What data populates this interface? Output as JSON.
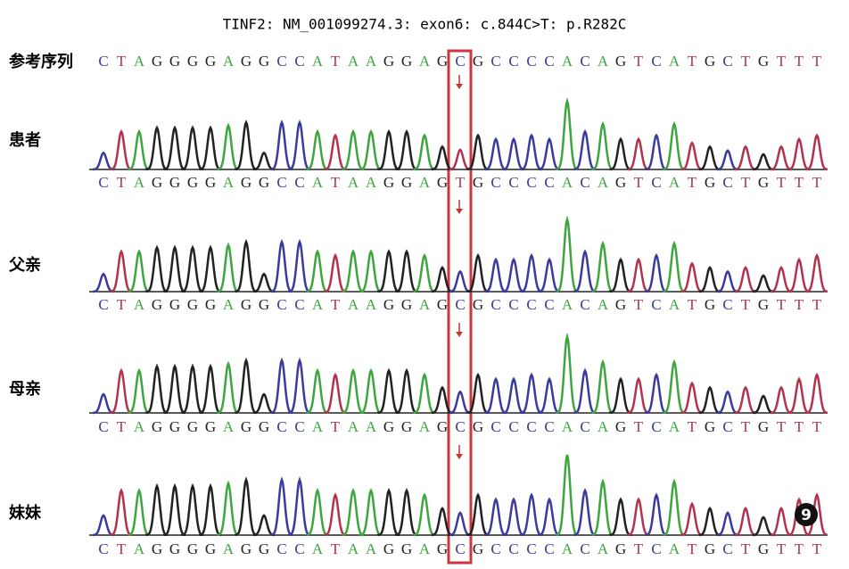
{
  "title": "TINF2: NM_001099274.3: exon6: c.844C>T: p.R282C",
  "reference": {
    "label": "参考序列",
    "sequence": [
      "C",
      "T",
      "A",
      "G",
      "G",
      "G",
      "G",
      "A",
      "G",
      "G",
      "C",
      "C",
      "A",
      "T",
      "A",
      "A",
      "G",
      "G",
      "A",
      "G",
      "C",
      "G",
      "C",
      "C",
      "C",
      "C",
      "A",
      "C",
      "A",
      "G",
      "T",
      "C",
      "A",
      "T",
      "G",
      "C",
      "T",
      "G",
      "T",
      "T",
      "T"
    ]
  },
  "rows": [
    {
      "label": "患者",
      "sequence": [
        "C",
        "T",
        "A",
        "G",
        "G",
        "G",
        "G",
        "A",
        "G",
        "G",
        "C",
        "C",
        "A",
        "T",
        "A",
        "A",
        "G",
        "G",
        "A",
        "G",
        "T",
        "G",
        "C",
        "C",
        "C",
        "C",
        "A",
        "C",
        "A",
        "G",
        "T",
        "C",
        "A",
        "T",
        "G",
        "C",
        "T",
        "G",
        "T",
        "T",
        "T"
      ]
    },
    {
      "label": "父亲",
      "sequence": [
        "C",
        "T",
        "A",
        "G",
        "G",
        "G",
        "G",
        "A",
        "G",
        "G",
        "C",
        "C",
        "A",
        "T",
        "A",
        "A",
        "G",
        "G",
        "A",
        "G",
        "C",
        "G",
        "C",
        "C",
        "C",
        "C",
        "A",
        "C",
        "A",
        "G",
        "T",
        "C",
        "A",
        "T",
        "G",
        "C",
        "T",
        "G",
        "T",
        "T",
        "T"
      ]
    },
    {
      "label": "母亲",
      "sequence": [
        "C",
        "T",
        "A",
        "G",
        "G",
        "G",
        "G",
        "A",
        "G",
        "G",
        "C",
        "C",
        "A",
        "T",
        "A",
        "A",
        "G",
        "G",
        "A",
        "G",
        "C",
        "G",
        "C",
        "C",
        "C",
        "C",
        "A",
        "C",
        "A",
        "G",
        "T",
        "C",
        "A",
        "T",
        "G",
        "C",
        "T",
        "G",
        "T",
        "T",
        "T"
      ]
    },
    {
      "label": "妹妹",
      "sequence": [
        "C",
        "T",
        "A",
        "G",
        "G",
        "G",
        "G",
        "A",
        "G",
        "G",
        "C",
        "C",
        "A",
        "T",
        "A",
        "A",
        "G",
        "G",
        "A",
        "G",
        "C",
        "G",
        "C",
        "C",
        "C",
        "C",
        "A",
        "C",
        "A",
        "G",
        "T",
        "C",
        "A",
        "T",
        "G",
        "C",
        "T",
        "G",
        "T",
        "T",
        "T"
      ]
    }
  ],
  "badge": "9"
}
